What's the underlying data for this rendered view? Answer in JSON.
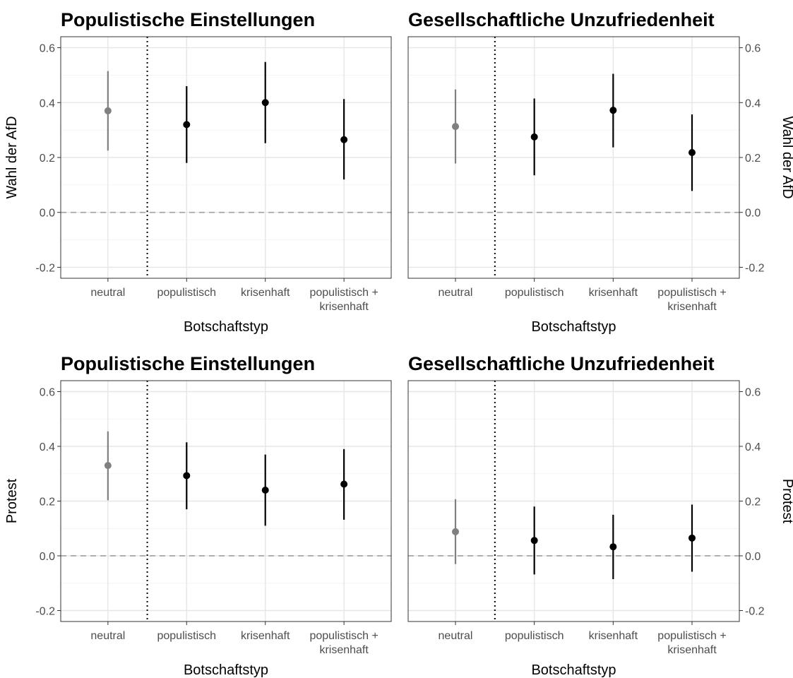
{
  "chart_data": [
    {
      "type": "scatter",
      "subtype": "point-range",
      "title": "Populistische Einstellungen",
      "xlabel": "Botschaftstyp",
      "ylabel": "Wahl der AfD",
      "ylabel_side": "left",
      "categories": [
        "neutral",
        "populistisch",
        "krisenhaft",
        "populistisch + krisenhaft"
      ],
      "values": [
        0.37,
        0.32,
        0.4,
        0.265
      ],
      "lower": [
        0.225,
        0.18,
        0.252,
        0.12
      ],
      "upper": [
        0.515,
        0.46,
        0.548,
        0.413
      ],
      "colors": [
        "#808080",
        "#000000",
        "#000000",
        "#000000"
      ],
      "ylim": [
        -0.24,
        0.64
      ],
      "yticks": [
        "-0.2",
        "0.0",
        "0.2",
        "0.4",
        "0.6"
      ],
      "reference_line": 0.0,
      "separator_after_category": 1,
      "grid": true
    },
    {
      "type": "scatter",
      "subtype": "point-range",
      "title": "Gesellschaftliche Unzufriedenheit",
      "xlabel": "Botschaftstyp",
      "ylabel": "Wahl der AfD",
      "ylabel_side": "right",
      "categories": [
        "neutral",
        "populistisch",
        "krisenhaft",
        "populistisch + krisenhaft"
      ],
      "values": [
        0.313,
        0.275,
        0.372,
        0.218
      ],
      "lower": [
        0.178,
        0.135,
        0.237,
        0.078
      ],
      "upper": [
        0.448,
        0.415,
        0.505,
        0.357
      ],
      "colors": [
        "#808080",
        "#000000",
        "#000000",
        "#000000"
      ],
      "ylim": [
        -0.24,
        0.64
      ],
      "yticks": [
        "-0.2",
        "0.0",
        "0.2",
        "0.4",
        "0.6"
      ],
      "reference_line": 0.0,
      "separator_after_category": 1,
      "grid": true
    },
    {
      "type": "scatter",
      "subtype": "point-range",
      "title": "Populistische Einstellungen",
      "xlabel": "Botschaftstyp",
      "ylabel": "Protest",
      "ylabel_side": "left",
      "categories": [
        "neutral",
        "populistisch",
        "krisenhaft",
        "populistisch + krisenhaft"
      ],
      "values": [
        0.33,
        0.293,
        0.24,
        0.262
      ],
      "lower": [
        0.203,
        0.17,
        0.11,
        0.132
      ],
      "upper": [
        0.455,
        0.415,
        0.37,
        0.39
      ],
      "colors": [
        "#808080",
        "#000000",
        "#000000",
        "#000000"
      ],
      "ylim": [
        -0.24,
        0.64
      ],
      "yticks": [
        "-0.2",
        "0.0",
        "0.2",
        "0.4",
        "0.6"
      ],
      "reference_line": 0.0,
      "separator_after_category": 1,
      "grid": true
    },
    {
      "type": "scatter",
      "subtype": "point-range",
      "title": "Gesellschaftliche Unzufriedenheit",
      "xlabel": "Botschaftstyp",
      "ylabel": "Protest",
      "ylabel_side": "right",
      "categories": [
        "neutral",
        "populistisch",
        "krisenhaft",
        "populistisch + krisenhaft"
      ],
      "values": [
        0.088,
        0.056,
        0.033,
        0.065
      ],
      "lower": [
        -0.03,
        -0.068,
        -0.085,
        -0.058
      ],
      "upper": [
        0.207,
        0.18,
        0.15,
        0.187
      ],
      "colors": [
        "#808080",
        "#000000",
        "#000000",
        "#000000"
      ],
      "ylim": [
        -0.24,
        0.64
      ],
      "yticks": [
        "-0.2",
        "0.0",
        "0.2",
        "0.4",
        "0.6"
      ],
      "reference_line": 0.0,
      "separator_after_category": 1,
      "grid": true
    }
  ]
}
